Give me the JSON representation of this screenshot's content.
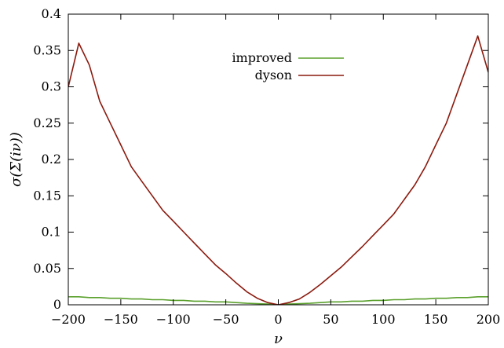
{
  "chart_data": {
    "type": "line",
    "title": "",
    "xlabel": "ν",
    "ylabel": "σ(Σ(iν))",
    "xlim": [
      -200,
      200
    ],
    "ylim": [
      0,
      0.4
    ],
    "xticks": [
      -200,
      -150,
      -100,
      -50,
      0,
      50,
      100,
      150,
      200
    ],
    "yticks": [
      0,
      0.05,
      0.1,
      0.15,
      0.2,
      0.25,
      0.3,
      0.35,
      0.4
    ],
    "ytick_labels": [
      "0",
      "0.05",
      "0.1",
      "0.15",
      "0.2",
      "0.25",
      "0.3",
      "0.35",
      "0.4"
    ],
    "grid": false,
    "legend_position": "top-center",
    "x": [
      -200,
      -190,
      -180,
      -170,
      -160,
      -150,
      -140,
      -130,
      -120,
      -110,
      -100,
      -90,
      -80,
      -70,
      -60,
      -50,
      -40,
      -30,
      -20,
      -10,
      0,
      10,
      20,
      30,
      40,
      50,
      60,
      70,
      80,
      90,
      100,
      110,
      120,
      130,
      140,
      150,
      160,
      170,
      180,
      190,
      200
    ],
    "series": [
      {
        "name": "improved",
        "color": "#5aa02c",
        "values": [
          0.011,
          0.011,
          0.01,
          0.01,
          0.009,
          0.009,
          0.008,
          0.008,
          0.007,
          0.007,
          0.006,
          0.006,
          0.005,
          0.005,
          0.004,
          0.004,
          0.003,
          0.002,
          0.0015,
          0.001,
          0.0,
          0.001,
          0.0015,
          0.002,
          0.003,
          0.004,
          0.004,
          0.005,
          0.005,
          0.006,
          0.006,
          0.007,
          0.007,
          0.008,
          0.008,
          0.009,
          0.009,
          0.01,
          0.01,
          0.011,
          0.011
        ]
      },
      {
        "name": "dyson",
        "color": "#8b1a0e",
        "values": [
          0.3,
          0.36,
          0.33,
          0.28,
          0.25,
          0.22,
          0.19,
          0.17,
          0.15,
          0.13,
          0.115,
          0.1,
          0.085,
          0.07,
          0.055,
          0.043,
          0.03,
          0.018,
          0.009,
          0.003,
          0.0,
          0.003,
          0.008,
          0.017,
          0.028,
          0.04,
          0.052,
          0.066,
          0.08,
          0.095,
          0.11,
          0.125,
          0.145,
          0.165,
          0.19,
          0.22,
          0.25,
          0.29,
          0.33,
          0.37,
          0.32
        ]
      }
    ]
  }
}
